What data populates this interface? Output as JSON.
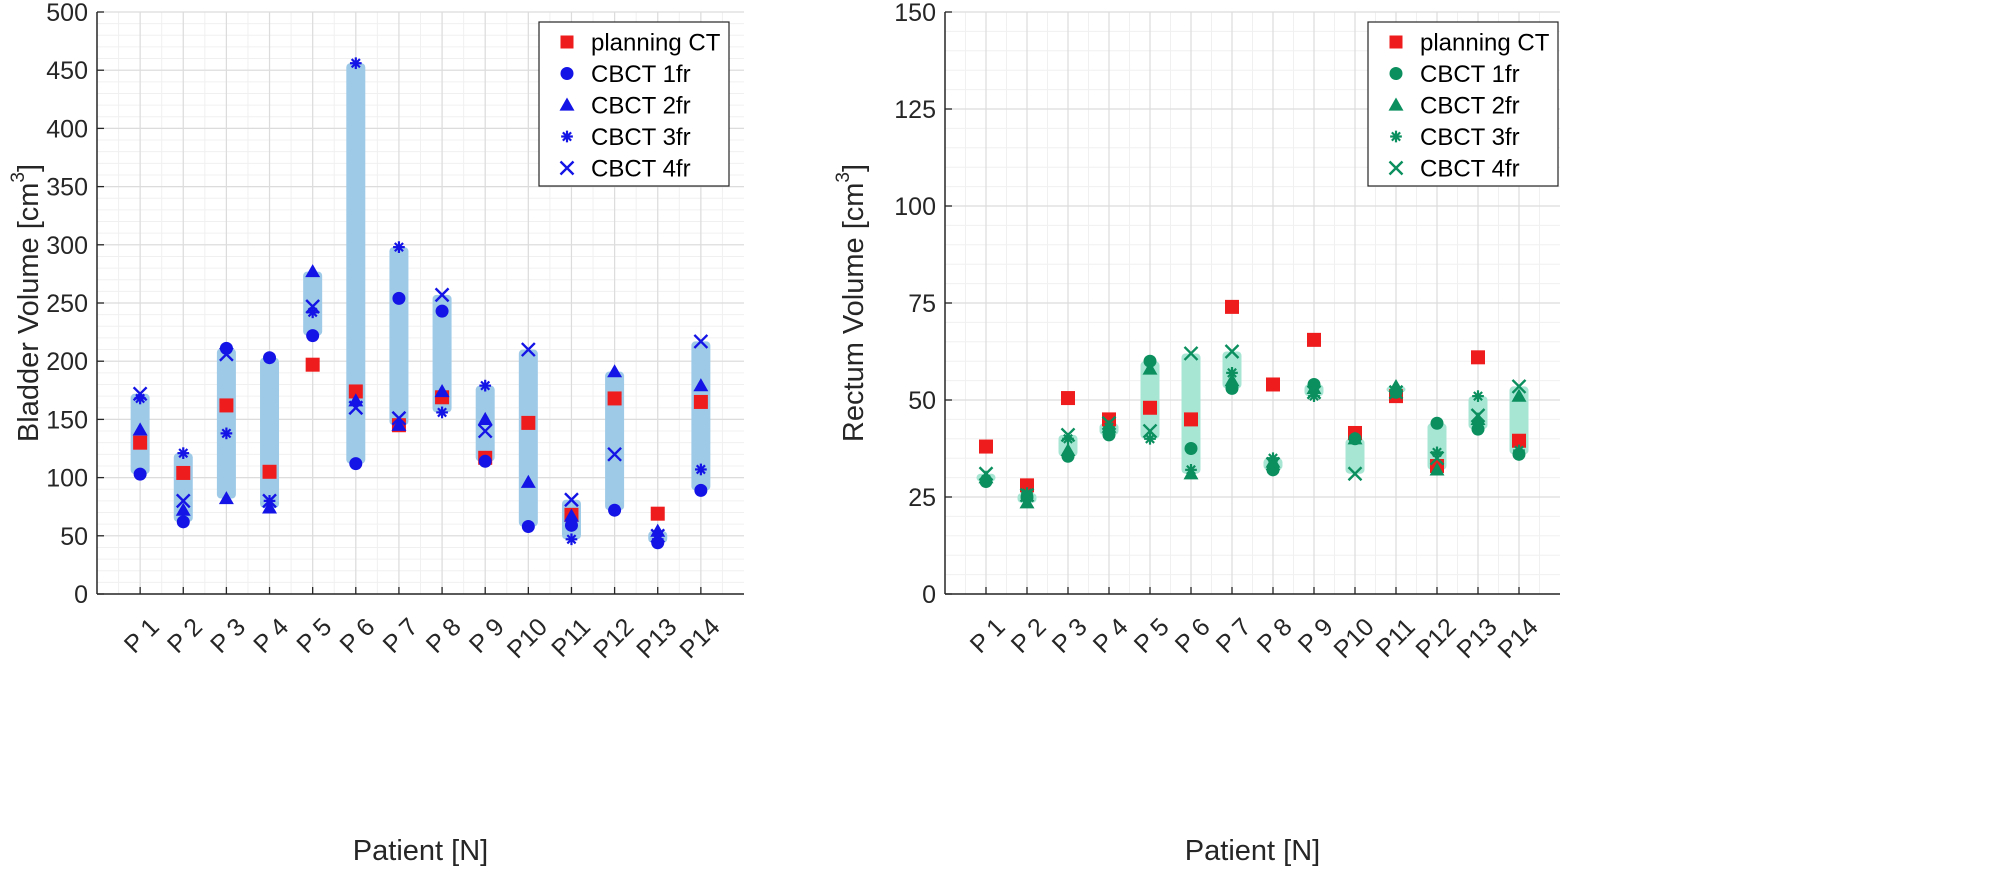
{
  "chart_data": [
    {
      "type": "scatter",
      "ylabel": "Bladder Volume [cm",
      "ylabel_sup": "3",
      "ylabel_close": "]",
      "xlabel": "Patient [N]",
      "ylim": [
        0,
        500
      ],
      "yticks": [
        0,
        50,
        100,
        150,
        200,
        250,
        300,
        350,
        400,
        450,
        500
      ],
      "ytick_labels": [
        "0",
        "50",
        "100",
        "150",
        "200",
        "250",
        "300",
        "350",
        "400",
        "450",
        "500"
      ],
      "categories": [
        "P 1",
        "P 2",
        "P 3",
        "P 4",
        "P 5",
        "P 6",
        "P 7",
        "P 8",
        "P 9",
        "P10",
        "P11",
        "P12",
        "P13",
        "P14"
      ],
      "range_color": "#9ecae8",
      "ct_color": "#ee1c1c",
      "cbct_color": "#1414e6",
      "grid": true,
      "legend_position": "top-right",
      "series": [
        {
          "name": "planning CT",
          "marker": "square",
          "values": [
            130,
            104,
            162,
            105,
            197,
            174,
            145,
            169,
            117,
            147,
            68,
            168,
            69,
            165
          ]
        },
        {
          "name": "CBCT 1fr",
          "marker": "circle",
          "values": [
            103,
            62,
            211,
            203,
            222,
            112,
            254,
            243,
            114,
            58,
            59,
            72,
            44,
            89
          ]
        },
        {
          "name": "CBCT 2fr",
          "marker": "triangle",
          "values": [
            141,
            72,
            82,
            74,
            277,
            166,
            145,
            174,
            150,
            96,
            67,
            191,
            54,
            179
          ]
        },
        {
          "name": "CBCT 3fr",
          "marker": "star",
          "values": [
            168,
            121,
            138,
            80,
            242,
            456,
            298,
            156,
            179,
            58,
            47,
            72,
            47,
            107
          ]
        },
        {
          "name": "CBCT 4fr",
          "marker": "x",
          "values": [
            172,
            80,
            206,
            80,
            247,
            160,
            151,
            257,
            140,
            210,
            81,
            120,
            50,
            217
          ]
        }
      ]
    },
    {
      "type": "scatter",
      "ylabel": "Rectum Volume [cm",
      "ylabel_sup": "3",
      "ylabel_close": "]",
      "xlabel": "Patient [N]",
      "ylim": [
        0,
        150
      ],
      "yticks": [
        0,
        25,
        50,
        75,
        100,
        125,
        150
      ],
      "ytick_labels": [
        "0",
        "25",
        "50",
        "75",
        "100",
        "125",
        "150"
      ],
      "categories": [
        "P 1",
        "P 2",
        "P 3",
        "P 4",
        "P 5",
        "P 6",
        "P 7",
        "P 8",
        "P 9",
        "P10",
        "P11",
        "P12",
        "P13",
        "P14"
      ],
      "range_color": "#a8e6d4",
      "ct_color": "#ee1c1c",
      "cbct_color": "#0b8f5f",
      "grid": true,
      "legend_position": "top-right",
      "series": [
        {
          "name": "planning CT",
          "marker": "square",
          "values": [
            38,
            28,
            50.5,
            45,
            48,
            45,
            74,
            54,
            65.5,
            41.5,
            51,
            33,
            61,
            39.5
          ]
        },
        {
          "name": "CBCT 1fr",
          "marker": "circle",
          "values": [
            29,
            25,
            35.5,
            41,
            60,
            37.5,
            53,
            32,
            54,
            40,
            52,
            44,
            42.5,
            36
          ]
        },
        {
          "name": "CBCT 2fr",
          "marker": "triangle",
          "values": [
            30,
            23.5,
            37,
            43,
            58,
            31,
            55,
            34,
            53,
            40,
            53.5,
            32,
            45,
            51
          ]
        },
        {
          "name": "CBCT 3fr",
          "marker": "star",
          "values": [
            29.5,
            26,
            40,
            43,
            40,
            32,
            57,
            35,
            51,
            40,
            52,
            36.5,
            51,
            37
          ]
        },
        {
          "name": "CBCT 4fr",
          "marker": "x",
          "values": [
            31,
            25.5,
            41,
            44,
            42,
            62,
            62.5,
            33.5,
            52,
            31,
            52,
            35,
            46,
            53.5
          ]
        }
      ]
    }
  ]
}
